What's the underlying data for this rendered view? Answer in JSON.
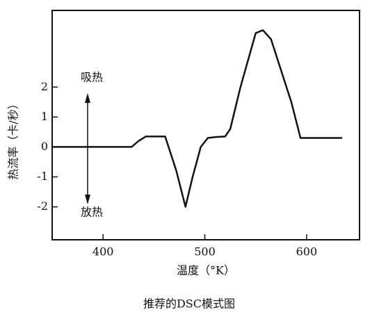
{
  "chart_data": {
    "type": "line",
    "title": "推荐的DSC模式图",
    "x_label": "温度（°K）",
    "y_label": "热流率（卡/秒）",
    "annotations": [
      "吸热",
      "放热"
    ],
    "x": [
      350,
      428,
      435,
      442,
      461,
      472,
      481,
      488,
      496,
      503,
      510,
      520,
      525,
      535,
      550,
      557,
      565,
      585,
      594,
      610,
      635
    ],
    "values": [
      0,
      0,
      0.2,
      0.35,
      0.35,
      -0.8,
      -2.0,
      -1.0,
      0,
      0.3,
      0.33,
      0.35,
      0.6,
      2.0,
      3.8,
      3.9,
      3.6,
      1.5,
      0.3,
      0.3,
      0.3
    ],
    "color": "#111111",
    "xlim": [
      350,
      652
    ],
    "xticks": [
      400,
      500,
      600
    ],
    "ylim": [
      -3.1,
      4.56
    ],
    "yticks": [
      -2,
      -1,
      0,
      1,
      2
    ]
  }
}
